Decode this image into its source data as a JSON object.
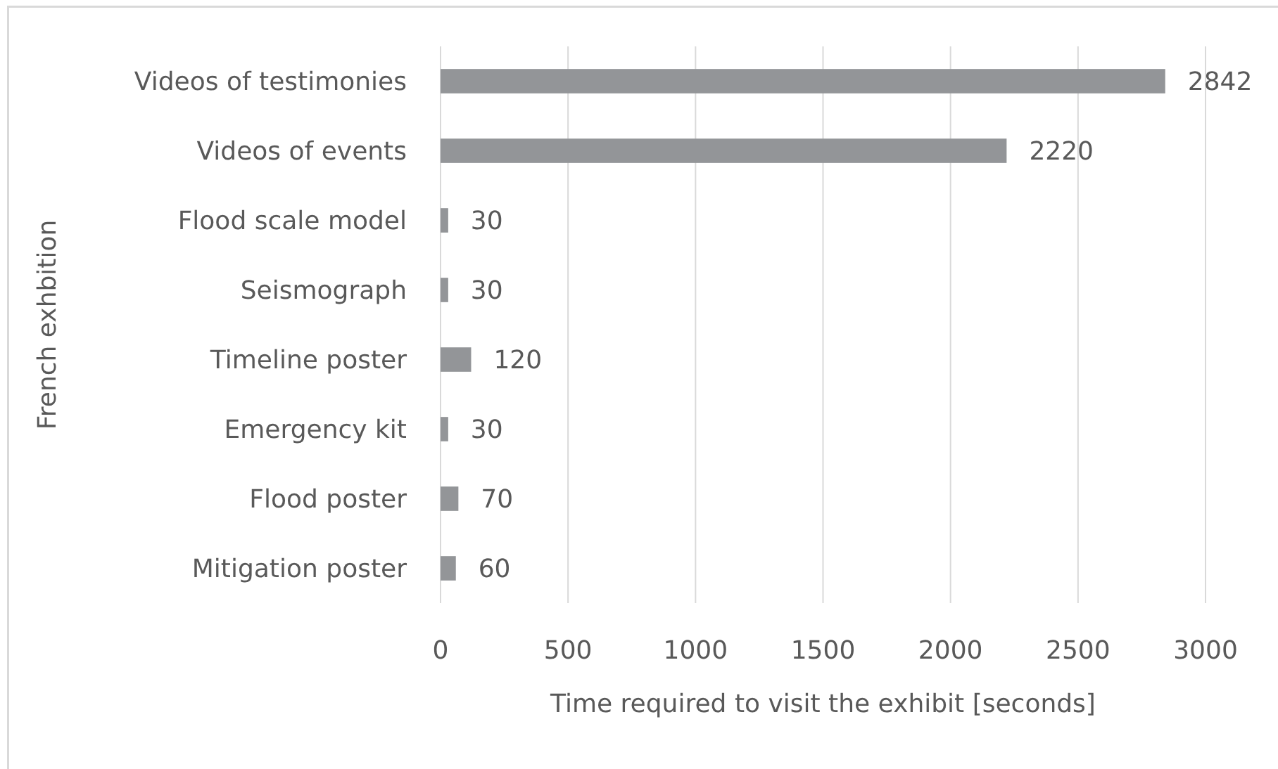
{
  "chart_data": {
    "type": "bar",
    "orientation": "horizontal",
    "xlabel": "Time required to visit the exhibit [seconds]",
    "ylabel": "French exhbition",
    "categories": [
      "Videos of testimonies",
      "Videos of events",
      "Flood scale model",
      "Seismograph",
      "Timeline poster",
      "Emergency kit",
      "Flood poster",
      "Mitigation poster"
    ],
    "values": [
      2842,
      2220,
      30,
      30,
      120,
      30,
      70,
      60
    ],
    "color": "#939598",
    "xlim": [
      0,
      3000
    ],
    "xticks": [
      0,
      500,
      1000,
      1500,
      2000,
      2500,
      3000
    ],
    "grid": "x",
    "data_labels": true
  }
}
